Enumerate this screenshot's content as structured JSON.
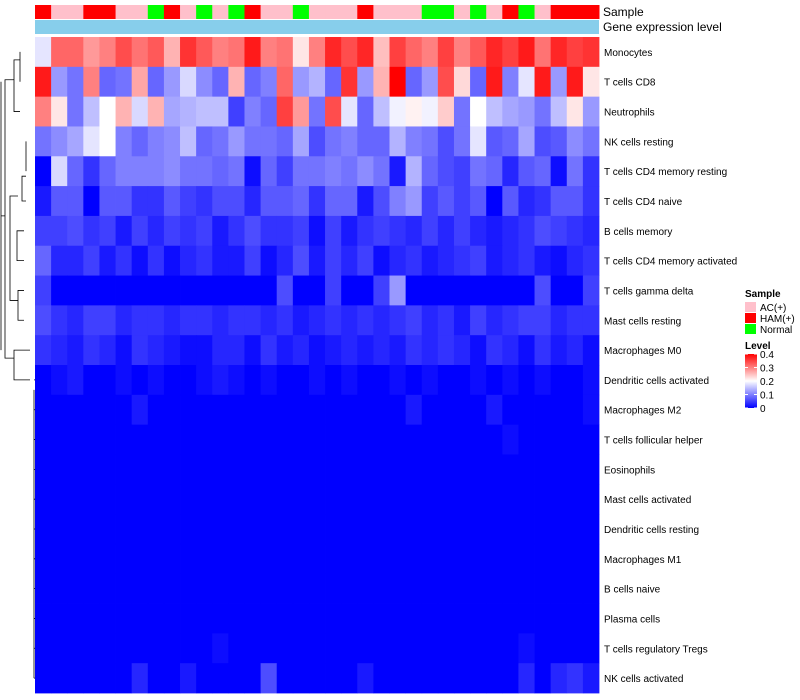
{
  "chart_data": {
    "type": "heatmap",
    "title": "",
    "annotation_bars": [
      "Sample",
      "Gene expression level"
    ],
    "n_samples": 35,
    "sample_groups": [
      "HAM(+)",
      "AC(+)",
      "AC(+)",
      "HAM(+)",
      "HAM(+)",
      "AC(+)",
      "AC(+)",
      "Normal",
      "HAM(+)",
      "AC(+)",
      "Normal",
      "AC(+)",
      "Normal",
      "HAM(+)",
      "AC(+)",
      "AC(+)",
      "Normal",
      "AC(+)",
      "AC(+)",
      "AC(+)",
      "HAM(+)",
      "AC(+)",
      "AC(+)",
      "AC(+)",
      "Normal",
      "Normal",
      "AC(+)",
      "Normal",
      "AC(+)",
      "HAM(+)",
      "Normal",
      "AC(+)",
      "HAM(+)",
      "HAM(+)",
      "HAM(+)"
    ],
    "row_labels": [
      "Monocytes",
      "T cells CD8",
      "Neutrophils",
      "NK cells resting",
      "T cells CD4 memory resting",
      "T cells CD4 naive",
      "B cells memory",
      "T cells CD4 memory activated",
      "T cells gamma delta",
      "Mast cells resting",
      "Macrophages M0",
      "Dendritic cells activated",
      "Macrophages M2",
      "T cells follicular helper",
      "Eosinophils",
      "Mast cells activated",
      "Dendritic cells resting",
      "Macrophages M1",
      "B cells naive",
      "Plasma cells",
      "T cells regulatory  Tregs",
      "NK cells activated"
    ],
    "values": [
      [
        0.18,
        0.32,
        0.32,
        0.28,
        0.3,
        0.34,
        0.31,
        0.33,
        0.26,
        0.36,
        0.33,
        0.3,
        0.31,
        0.38,
        0.3,
        0.31,
        0.22,
        0.3,
        0.37,
        0.34,
        0.37,
        0.25,
        0.35,
        0.32,
        0.3,
        0.35,
        0.3,
        0.33,
        0.37,
        0.35,
        0.38,
        0.31,
        0.37,
        0.35,
        0.36
      ],
      [
        0.38,
        0.12,
        0.09,
        0.3,
        0.08,
        0.09,
        0.27,
        0.08,
        0.12,
        0.17,
        0.11,
        0.08,
        0.26,
        0.08,
        0.1,
        0.32,
        0.12,
        0.14,
        0.08,
        0.36,
        0.12,
        0.26,
        0.4,
        0.08,
        0.12,
        0.34,
        0.23,
        0.08,
        0.38,
        0.1,
        0.18,
        0.38,
        0.12,
        0.38,
        0.22
      ],
      [
        0.3,
        0.22,
        0.09,
        0.15,
        0.2,
        0.26,
        0.17,
        0.26,
        0.13,
        0.14,
        0.15,
        0.15,
        0.05,
        0.1,
        0.08,
        0.35,
        0.28,
        0.09,
        0.34,
        0.18,
        0.08,
        0.15,
        0.19,
        0.21,
        0.19,
        0.24,
        0.09,
        0.2,
        0.15,
        0.13,
        0.12,
        0.09,
        0.15,
        0.22,
        0.12
      ],
      [
        0.09,
        0.11,
        0.13,
        0.18,
        0.2,
        0.1,
        0.08,
        0.1,
        0.11,
        0.15,
        0.08,
        0.09,
        0.12,
        0.09,
        0.09,
        0.08,
        0.13,
        0.06,
        0.09,
        0.1,
        0.08,
        0.08,
        0.14,
        0.1,
        0.09,
        0.06,
        0.09,
        0.18,
        0.07,
        0.08,
        0.13,
        0.06,
        0.07,
        0.11,
        0.09
      ],
      [
        0.0,
        0.17,
        0.08,
        0.04,
        0.08,
        0.1,
        0.1,
        0.1,
        0.11,
        0.09,
        0.09,
        0.08,
        0.09,
        0.01,
        0.08,
        0.05,
        0.09,
        0.09,
        0.1,
        0.09,
        0.11,
        0.09,
        0.02,
        0.14,
        0.08,
        0.06,
        0.05,
        0.09,
        0.08,
        0.03,
        0.07,
        0.08,
        0.01,
        0.09,
        0.04
      ],
      [
        0.02,
        0.07,
        0.07,
        0.0,
        0.07,
        0.07,
        0.04,
        0.04,
        0.07,
        0.05,
        0.04,
        0.06,
        0.06,
        0.03,
        0.07,
        0.07,
        0.08,
        0.04,
        0.08,
        0.08,
        0.02,
        0.06,
        0.1,
        0.12,
        0.05,
        0.07,
        0.05,
        0.07,
        0.0,
        0.07,
        0.03,
        0.04,
        0.07,
        0.07,
        0.04
      ],
      [
        0.05,
        0.05,
        0.06,
        0.04,
        0.05,
        0.02,
        0.05,
        0.03,
        0.05,
        0.04,
        0.05,
        0.02,
        0.04,
        0.06,
        0.04,
        0.04,
        0.05,
        0.01,
        0.05,
        0.02,
        0.04,
        0.05,
        0.04,
        0.03,
        0.05,
        0.03,
        0.05,
        0.03,
        0.02,
        0.03,
        0.04,
        0.06,
        0.05,
        0.04,
        0.03
      ],
      [
        0.08,
        0.03,
        0.03,
        0.05,
        0.02,
        0.04,
        0.01,
        0.04,
        0.01,
        0.03,
        0.04,
        0.02,
        0.02,
        0.05,
        0.01,
        0.03,
        0.06,
        0.02,
        0.05,
        0.03,
        0.05,
        0.01,
        0.03,
        0.04,
        0.02,
        0.03,
        0.04,
        0.05,
        0.02,
        0.03,
        0.04,
        0.02,
        0.01,
        0.03,
        0.04
      ],
      [
        0.05,
        0.0,
        0.0,
        0.0,
        0.0,
        0.0,
        0.0,
        0.0,
        0.0,
        0.0,
        0.0,
        0.0,
        0.0,
        0.0,
        0.0,
        0.06,
        0.0,
        0.0,
        0.05,
        0.0,
        0.0,
        0.05,
        0.12,
        0.0,
        0.0,
        0.0,
        0.0,
        0.0,
        0.0,
        0.0,
        0.0,
        0.06,
        0.0,
        0.0,
        0.05
      ],
      [
        0.06,
        0.04,
        0.03,
        0.05,
        0.05,
        0.03,
        0.04,
        0.04,
        0.03,
        0.04,
        0.04,
        0.03,
        0.04,
        0.04,
        0.03,
        0.04,
        0.02,
        0.03,
        0.04,
        0.03,
        0.04,
        0.03,
        0.04,
        0.05,
        0.03,
        0.04,
        0.02,
        0.05,
        0.03,
        0.04,
        0.05,
        0.05,
        0.03,
        0.04,
        0.04
      ],
      [
        0.04,
        0.03,
        0.02,
        0.04,
        0.03,
        0.01,
        0.04,
        0.03,
        0.02,
        0.01,
        0.01,
        0.03,
        0.03,
        0.01,
        0.04,
        0.02,
        0.03,
        0.01,
        0.02,
        0.03,
        0.02,
        0.03,
        0.02,
        0.04,
        0.03,
        0.04,
        0.03,
        0.01,
        0.04,
        0.03,
        0.01,
        0.04,
        0.02,
        0.03,
        0.01
      ],
      [
        0.0,
        0.01,
        0.02,
        0.0,
        0.0,
        0.01,
        0.0,
        0.01,
        0.0,
        0.0,
        0.01,
        0.02,
        0.01,
        0.0,
        0.01,
        0.0,
        0.0,
        0.01,
        0.0,
        0.01,
        0.0,
        0.0,
        0.01,
        0.0,
        0.01,
        0.0,
        0.0,
        0.01,
        0.0,
        0.01,
        0.0,
        0.01,
        0.0,
        0.0,
        0.01
      ],
      [
        0.0,
        0.0,
        0.0,
        0.0,
        0.0,
        0.0,
        0.02,
        0.0,
        0.0,
        0.0,
        0.0,
        0.0,
        0.0,
        0.0,
        0.0,
        0.0,
        0.0,
        0.0,
        0.0,
        0.0,
        0.0,
        0.0,
        0.0,
        0.02,
        0.0,
        0.0,
        0.0,
        0.0,
        0.02,
        0.0,
        0.0,
        0.0,
        0.0,
        0.0,
        0.01
      ],
      [
        0.0,
        0.0,
        0.0,
        0.0,
        0.0,
        0.0,
        0.0,
        0.0,
        0.0,
        0.0,
        0.0,
        0.0,
        0.0,
        0.0,
        0.0,
        0.0,
        0.0,
        0.0,
        0.0,
        0.0,
        0.0,
        0.0,
        0.0,
        0.0,
        0.0,
        0.0,
        0.0,
        0.0,
        0.0,
        0.01,
        0.0,
        0.0,
        0.0,
        0.0,
        0.0
      ],
      [
        0.0,
        0.0,
        0.0,
        0.0,
        0.0,
        0.0,
        0.0,
        0.0,
        0.0,
        0.0,
        0.0,
        0.0,
        0.0,
        0.0,
        0.0,
        0.0,
        0.0,
        0.0,
        0.0,
        0.0,
        0.0,
        0.0,
        0.0,
        0.0,
        0.0,
        0.0,
        0.0,
        0.0,
        0.0,
        0.0,
        0.0,
        0.0,
        0.0,
        0.0,
        0.0
      ],
      [
        0.0,
        0.0,
        0.0,
        0.0,
        0.0,
        0.0,
        0.0,
        0.0,
        0.0,
        0.0,
        0.0,
        0.0,
        0.0,
        0.0,
        0.0,
        0.0,
        0.0,
        0.0,
        0.0,
        0.0,
        0.0,
        0.0,
        0.0,
        0.0,
        0.0,
        0.0,
        0.0,
        0.0,
        0.0,
        0.0,
        0.0,
        0.0,
        0.0,
        0.0,
        0.0
      ],
      [
        0.0,
        0.0,
        0.0,
        0.0,
        0.0,
        0.0,
        0.0,
        0.0,
        0.0,
        0.0,
        0.0,
        0.0,
        0.0,
        0.0,
        0.0,
        0.0,
        0.0,
        0.0,
        0.0,
        0.0,
        0.0,
        0.0,
        0.0,
        0.0,
        0.0,
        0.0,
        0.0,
        0.0,
        0.0,
        0.0,
        0.0,
        0.0,
        0.0,
        0.0,
        0.0
      ],
      [
        0.0,
        0.0,
        0.0,
        0.0,
        0.0,
        0.0,
        0.0,
        0.0,
        0.0,
        0.0,
        0.0,
        0.0,
        0.0,
        0.0,
        0.0,
        0.0,
        0.0,
        0.0,
        0.0,
        0.0,
        0.0,
        0.0,
        0.0,
        0.0,
        0.0,
        0.0,
        0.0,
        0.0,
        0.0,
        0.0,
        0.0,
        0.0,
        0.0,
        0.0,
        0.0
      ],
      [
        0.0,
        0.0,
        0.0,
        0.0,
        0.0,
        0.0,
        0.0,
        0.0,
        0.0,
        0.0,
        0.0,
        0.0,
        0.0,
        0.0,
        0.0,
        0.0,
        0.0,
        0.0,
        0.0,
        0.0,
        0.0,
        0.0,
        0.0,
        0.0,
        0.0,
        0.0,
        0.0,
        0.0,
        0.0,
        0.0,
        0.0,
        0.0,
        0.0,
        0.0,
        0.0
      ],
      [
        0.0,
        0.0,
        0.0,
        0.0,
        0.0,
        0.0,
        0.0,
        0.0,
        0.0,
        0.0,
        0.0,
        0.0,
        0.0,
        0.0,
        0.0,
        0.0,
        0.0,
        0.0,
        0.0,
        0.0,
        0.0,
        0.0,
        0.0,
        0.0,
        0.0,
        0.0,
        0.0,
        0.0,
        0.0,
        0.0,
        0.0,
        0.0,
        0.0,
        0.0,
        0.0
      ],
      [
        0.0,
        0.0,
        0.0,
        0.0,
        0.0,
        0.0,
        0.0,
        0.0,
        0.0,
        0.0,
        0.0,
        0.01,
        0.0,
        0.0,
        0.0,
        0.0,
        0.0,
        0.0,
        0.0,
        0.0,
        0.0,
        0.0,
        0.0,
        0.0,
        0.0,
        0.0,
        0.0,
        0.0,
        0.0,
        0.0,
        0.01,
        0.0,
        0.0,
        0.0,
        0.0
      ],
      [
        0.0,
        0.0,
        0.0,
        0.0,
        0.0,
        0.0,
        0.03,
        0.0,
        0.0,
        0.02,
        0.0,
        0.0,
        0.0,
        0.0,
        0.06,
        0.0,
        0.0,
        0.0,
        0.0,
        0.0,
        0.02,
        0.0,
        0.0,
        0.0,
        0.0,
        0.0,
        0.0,
        0.0,
        0.0,
        0.0,
        0.03,
        0.0,
        0.03,
        0.04,
        0.02
      ]
    ],
    "color_scale": {
      "title": "Level",
      "min": 0,
      "max": 0.4,
      "ticks": [
        0.4,
        0.3,
        0.2,
        0.1,
        0
      ],
      "colors": [
        "#0000ff",
        "#ffffff",
        "#ff0000"
      ]
    },
    "sample_legend": {
      "title": "Sample",
      "items": [
        {
          "label": "AC(+)",
          "color": "#ffc0cb"
        },
        {
          "label": "HAM(+)",
          "color": "#ff0000"
        },
        {
          "label": "Normal",
          "color": "#00ff00"
        }
      ]
    },
    "gene_expression_color": "#87ceeb",
    "dendrogram": "row clustering dendrogram on left"
  }
}
